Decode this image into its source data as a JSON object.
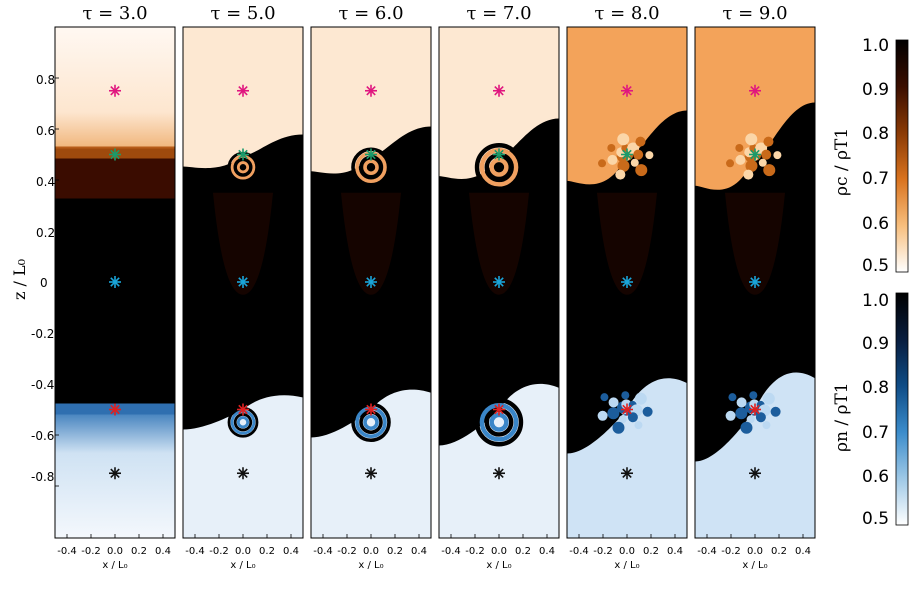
{
  "panels": [
    {
      "title": "τ = 3.0"
    },
    {
      "title": "τ = 5.0"
    },
    {
      "title": "τ = 6.0"
    },
    {
      "title": "τ = 7.0"
    },
    {
      "title": "τ = 8.0"
    },
    {
      "title": "τ = 9.0"
    }
  ],
  "y_axis": {
    "title": "z / L₀",
    "ticks": [
      "0.8",
      "0.6",
      "0.4",
      "0.2",
      "0",
      "-0.2",
      "-0.4",
      "-0.6",
      "-0.8"
    ]
  },
  "x_axis": {
    "title": "x / L₀",
    "ticks": [
      "-0.4",
      "-0.2",
      "0.0",
      "0.2",
      "0.4"
    ]
  },
  "colorbar_top": {
    "ticks": [
      "1.0",
      "0.9",
      "0.8",
      "0.7",
      "0.6",
      "0.5"
    ],
    "label": "ρc / ρT1",
    "colors": [
      "#000000",
      "#3a0e00",
      "#8a3a05",
      "#d9731f",
      "#f7be7d",
      "#ffffff"
    ]
  },
  "colorbar_bottom": {
    "ticks": [
      "1.0",
      "0.9",
      "0.8",
      "0.7",
      "0.6",
      "0.5"
    ],
    "label": "ρn / ρT1",
    "colors": [
      "#000000",
      "#081d3e",
      "#0f4c86",
      "#3b8ccb",
      "#9ec8e6",
      "#ffffff"
    ]
  },
  "markers": [
    {
      "z": 0.75,
      "color": "#e0167f"
    },
    {
      "z": 0.5,
      "color": "#1a9b6b"
    },
    {
      "z": 0.0,
      "color": "#1aa5d9"
    },
    {
      "z": -0.5,
      "color": "#e02020"
    },
    {
      "z": -0.75,
      "color": "#111111"
    }
  ]
}
